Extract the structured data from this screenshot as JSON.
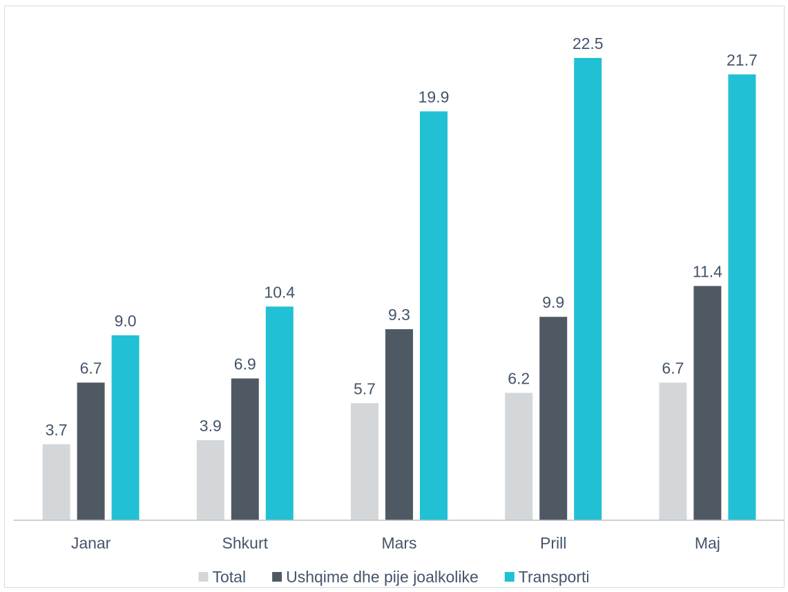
{
  "chart_data": {
    "type": "bar",
    "categories": [
      "Janar",
      "Shkurt",
      "Mars",
      "Prill",
      "Maj"
    ],
    "series": [
      {
        "name": "Total",
        "color": "#d4d7da",
        "values": [
          3.7,
          3.9,
          5.7,
          6.2,
          6.7
        ],
        "labels": [
          "3.7",
          "3.9",
          "5.7",
          "6.2",
          "6.7"
        ]
      },
      {
        "name": "Ushqime dhe pije joalkolike",
        "color": "#4f5964",
        "values": [
          6.7,
          6.9,
          9.3,
          9.9,
          11.4
        ],
        "labels": [
          "6.7",
          "6.9",
          "9.3",
          "9.9",
          "11.4"
        ]
      },
      {
        "name": "Transporti",
        "color": "#22c0d4",
        "values": [
          9.0,
          10.4,
          19.9,
          22.5,
          21.7
        ],
        "labels": [
          "9.0",
          "10.4",
          "19.9",
          "22.5",
          "21.7"
        ]
      }
    ],
    "ylim": [
      0,
      23.5
    ],
    "grid": false,
    "legend": "bottom"
  }
}
